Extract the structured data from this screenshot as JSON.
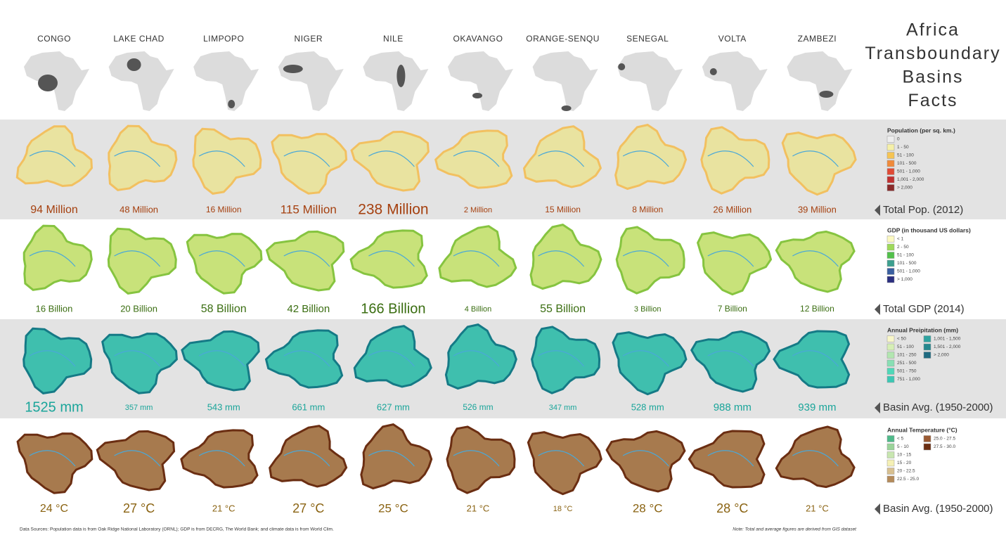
{
  "header": {
    "title_lines": [
      "Africa",
      "Transboundary",
      "Basins",
      "Facts"
    ]
  },
  "basins": [
    "CONGO",
    "LAKE CHAD",
    "LIMPOPO",
    "NIGER",
    "NILE",
    "OKAVANGO",
    "ORANGE-SENQU",
    "SENEGAL",
    "VOLTA",
    "ZAMBEZI"
  ],
  "rows": [
    {
      "label": "Total Pop. (2012)",
      "legend_title": "Population (per sq. km.)",
      "legend_items": [
        "0",
        "1 - 50",
        "51 - 100",
        "101 - 500",
        "501 - 1,000",
        "1,001 - 2,000",
        "> 2,000"
      ],
      "values": [
        "94 Million",
        "48 Million",
        "16 Million",
        "115 Million",
        "238 Million",
        "2 Million",
        "15 Million",
        "8 Million",
        "26 Million",
        "39 Million"
      ]
    },
    {
      "label": "Total GDP (2014)",
      "legend_title": "GDP (in thousand US dollars)",
      "legend_items": [
        "< 1",
        "2 - 50",
        "51 - 100",
        "101 - 500",
        "501 - 1,000",
        "> 1,000"
      ],
      "values": [
        "16 Billion",
        "20 Billion",
        "58 Billion",
        "42 Billion",
        "166 Billion",
        "4 Billion",
        "55 Billion",
        "3 Billion",
        "7 Billion",
        "12 Billion"
      ]
    },
    {
      "label": "Basin Avg. (1950-2000)",
      "legend_title": "Annual Preipitation (mm)",
      "legend_items": [
        "< 50",
        "51 - 100",
        "101 - 250",
        "251 - 500",
        "501 - 750",
        "751 - 1,000",
        "1,001 - 1,500",
        "1,501 - 2,000",
        "> 2,000"
      ],
      "values": [
        "1525 mm",
        "357 mm",
        "543 mm",
        "661 mm",
        "627 mm",
        "526 mm",
        "347 mm",
        "528 mm",
        "988 mm",
        "939 mm"
      ]
    },
    {
      "label": "Basin Avg. (1950-2000)",
      "legend_title": "Annual Temperature (°C)",
      "legend_items": [
        "< 5",
        "5 - 10",
        "10 - 15",
        "15 - 20",
        "20 - 22.5",
        "22.5 - 25.0",
        "25.0 - 27.5",
        "27.5 - 30.0"
      ],
      "values": [
        "24 °C",
        "27 °C",
        "21 °C",
        "27 °C",
        "25 °C",
        "21 °C",
        "18 °C",
        "28 °C",
        "28 °C",
        "21 °C"
      ]
    }
  ],
  "footer": {
    "sources": "Data Sources: Population data is from Oak Ridge National Laboratory (ORNL); GDP is from DECRG, The World Bank; and climate data is from World Clim.",
    "note": "Note: Total and average figures are derived from GIS dataset"
  }
}
